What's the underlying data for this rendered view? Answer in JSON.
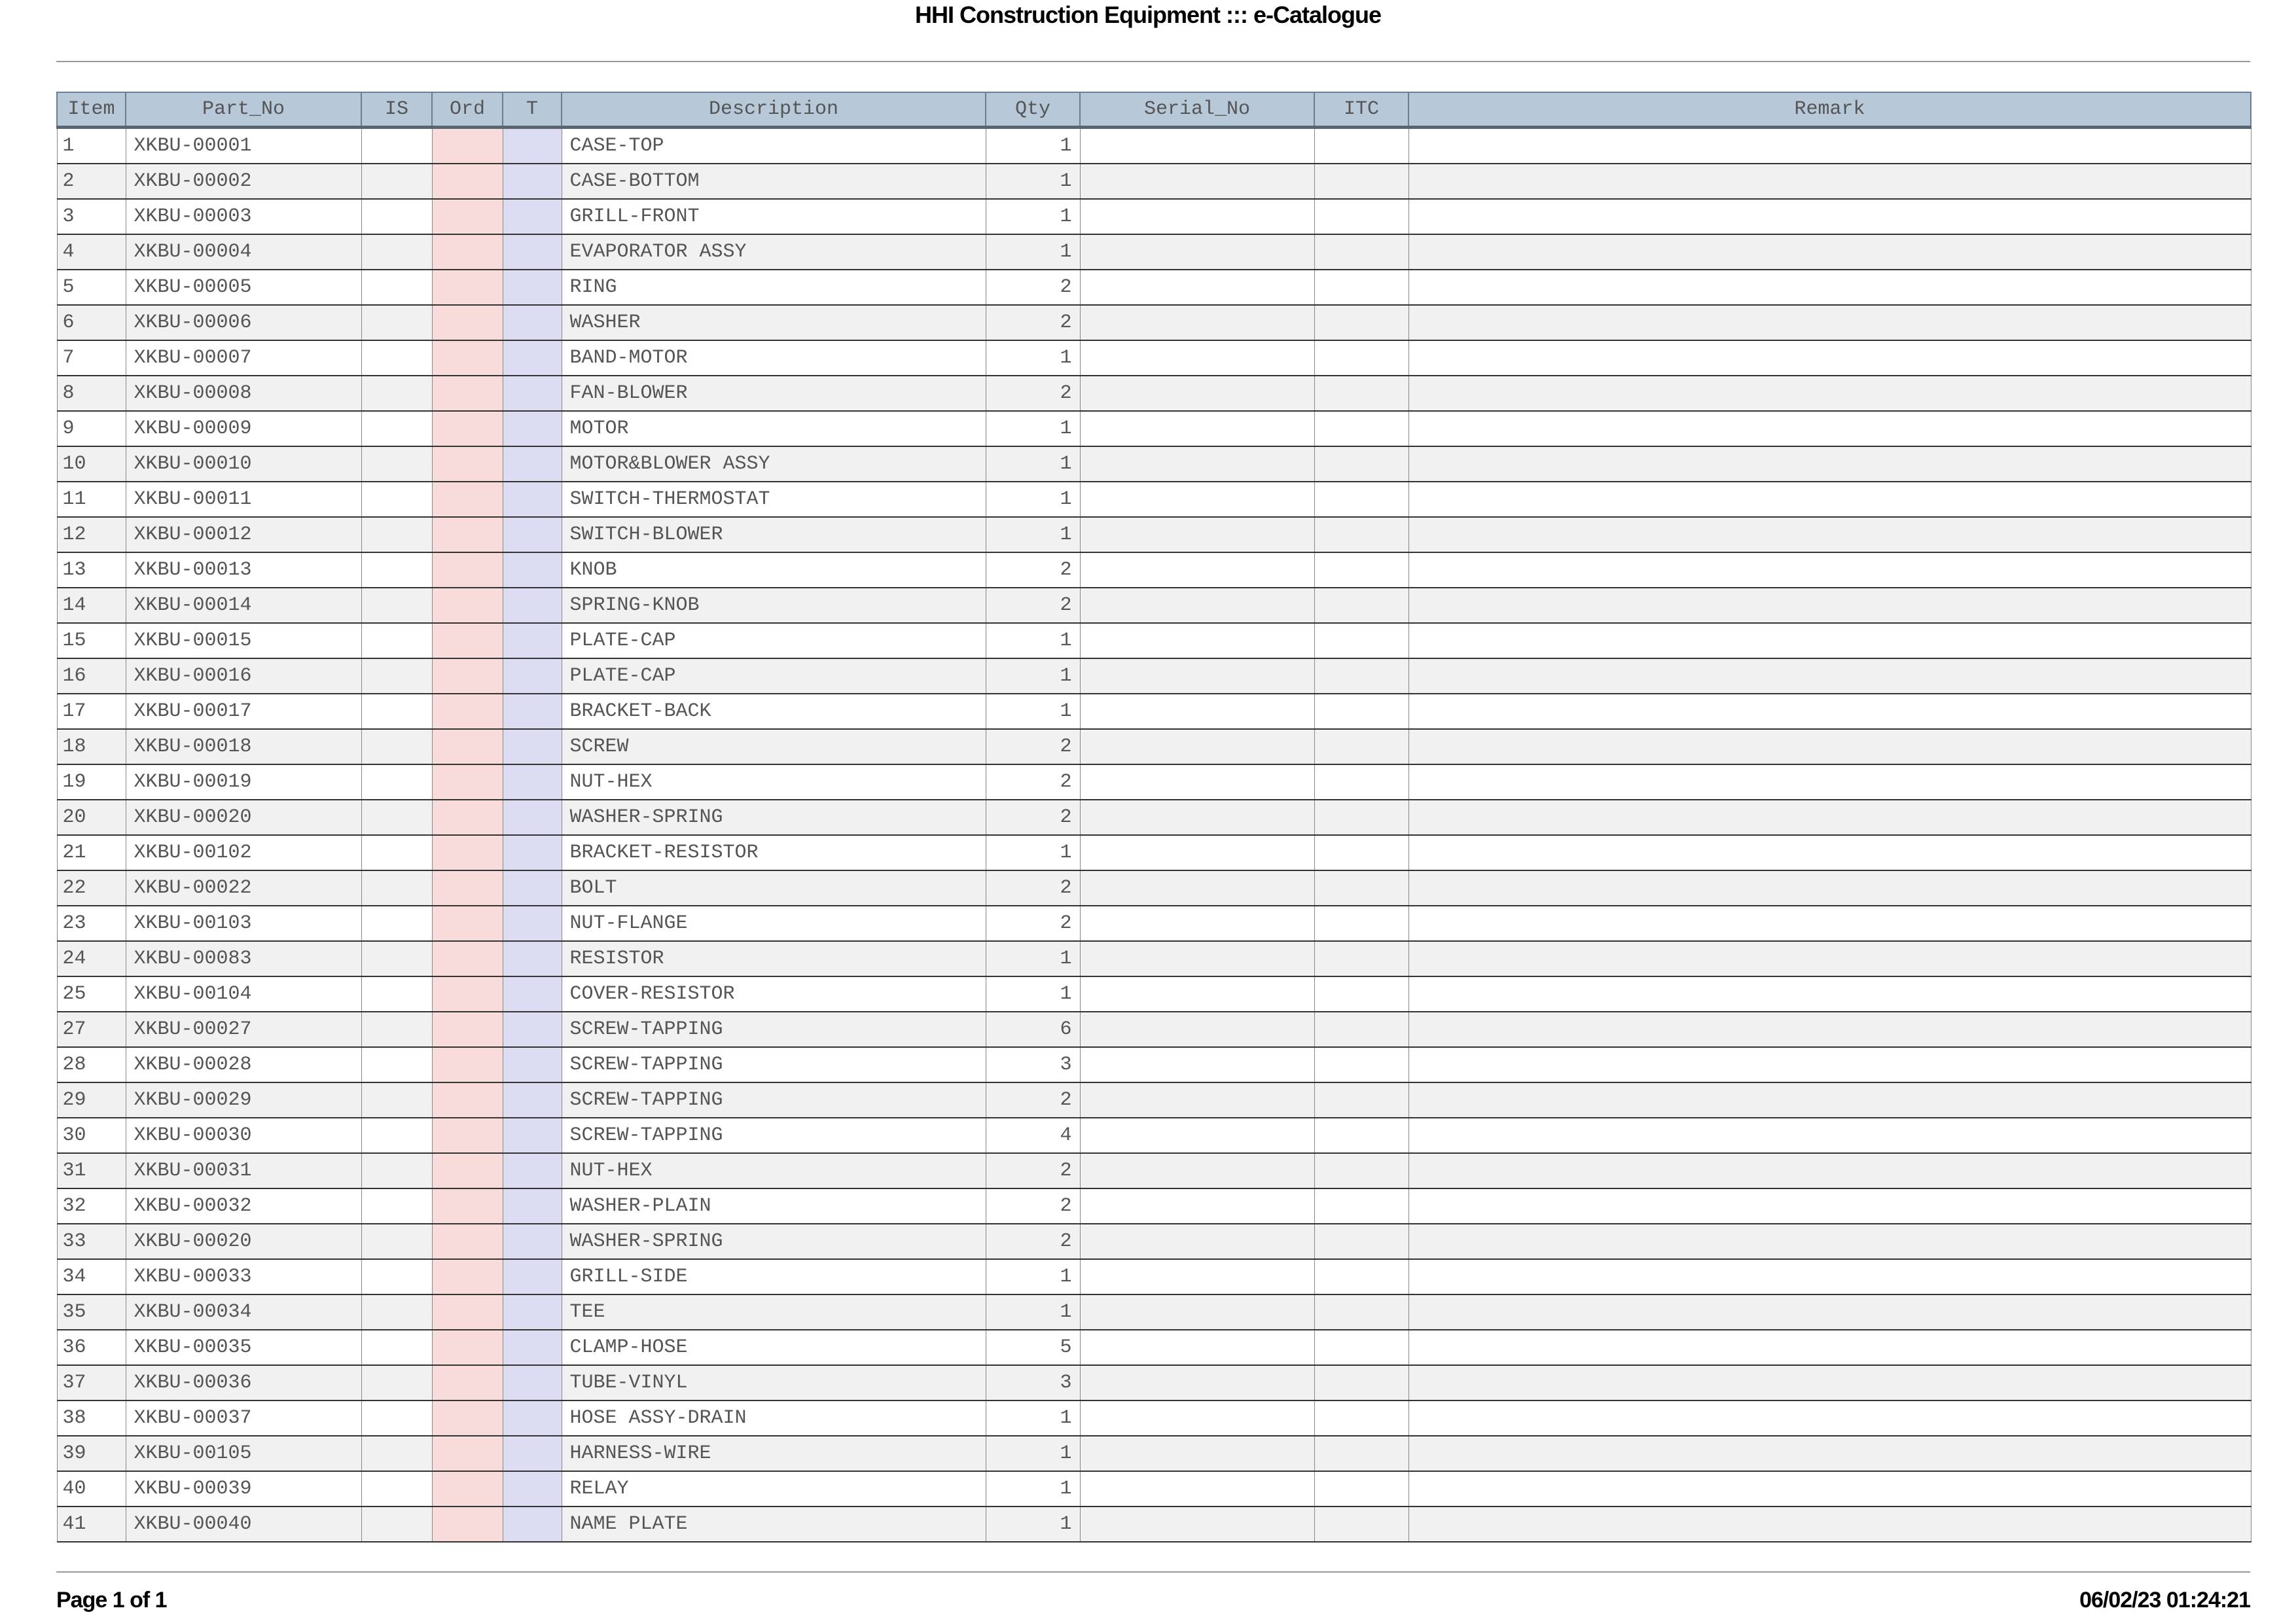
{
  "header": {
    "title": "HHI Construction Equipment ::: e-Catalogue"
  },
  "colors": {
    "header_bg": "#b7c9d9",
    "ord_column": "#f8dcdc",
    "t_column": "#dcdcf3",
    "alt_row": "#f1f1f1"
  },
  "table": {
    "columns": [
      "Item",
      "Part_No",
      "IS",
      "Ord",
      "T",
      "Description",
      "Qty",
      "Serial_No",
      "ITC",
      "Remark"
    ],
    "rows": [
      [
        "1",
        "XKBU-00001",
        "",
        "",
        "",
        "CASE-TOP",
        "1",
        "",
        "",
        ""
      ],
      [
        "2",
        "XKBU-00002",
        "",
        "",
        "",
        "CASE-BOTTOM",
        "1",
        "",
        "",
        ""
      ],
      [
        "3",
        "XKBU-00003",
        "",
        "",
        "",
        "GRILL-FRONT",
        "1",
        "",
        "",
        ""
      ],
      [
        "4",
        "XKBU-00004",
        "",
        "",
        "",
        "EVAPORATOR ASSY",
        "1",
        "",
        "",
        ""
      ],
      [
        "5",
        "XKBU-00005",
        "",
        "",
        "",
        "RING",
        "2",
        "",
        "",
        ""
      ],
      [
        "6",
        "XKBU-00006",
        "",
        "",
        "",
        "WASHER",
        "2",
        "",
        "",
        ""
      ],
      [
        "7",
        "XKBU-00007",
        "",
        "",
        "",
        "BAND-MOTOR",
        "1",
        "",
        "",
        ""
      ],
      [
        "8",
        "XKBU-00008",
        "",
        "",
        "",
        "FAN-BLOWER",
        "2",
        "",
        "",
        ""
      ],
      [
        "9",
        "XKBU-00009",
        "",
        "",
        "",
        "MOTOR",
        "1",
        "",
        "",
        ""
      ],
      [
        "10",
        "XKBU-00010",
        "",
        "",
        "",
        "MOTOR&BLOWER ASSY",
        "1",
        "",
        "",
        ""
      ],
      [
        "11",
        "XKBU-00011",
        "",
        "",
        "",
        "SWITCH-THERMOSTAT",
        "1",
        "",
        "",
        ""
      ],
      [
        "12",
        "XKBU-00012",
        "",
        "",
        "",
        "SWITCH-BLOWER",
        "1",
        "",
        "",
        ""
      ],
      [
        "13",
        "XKBU-00013",
        "",
        "",
        "",
        "KNOB",
        "2",
        "",
        "",
        ""
      ],
      [
        "14",
        "XKBU-00014",
        "",
        "",
        "",
        "SPRING-KNOB",
        "2",
        "",
        "",
        ""
      ],
      [
        "15",
        "XKBU-00015",
        "",
        "",
        "",
        "PLATE-CAP",
        "1",
        "",
        "",
        ""
      ],
      [
        "16",
        "XKBU-00016",
        "",
        "",
        "",
        "PLATE-CAP",
        "1",
        "",
        "",
        ""
      ],
      [
        "17",
        "XKBU-00017",
        "",
        "",
        "",
        "BRACKET-BACK",
        "1",
        "",
        "",
        ""
      ],
      [
        "18",
        "XKBU-00018",
        "",
        "",
        "",
        "SCREW",
        "2",
        "",
        "",
        ""
      ],
      [
        "19",
        "XKBU-00019",
        "",
        "",
        "",
        "NUT-HEX",
        "2",
        "",
        "",
        ""
      ],
      [
        "20",
        "XKBU-00020",
        "",
        "",
        "",
        "WASHER-SPRING",
        "2",
        "",
        "",
        ""
      ],
      [
        "21",
        "XKBU-00102",
        "",
        "",
        "",
        "BRACKET-RESISTOR",
        "1",
        "",
        "",
        ""
      ],
      [
        "22",
        "XKBU-00022",
        "",
        "",
        "",
        "BOLT",
        "2",
        "",
        "",
        ""
      ],
      [
        "23",
        "XKBU-00103",
        "",
        "",
        "",
        "NUT-FLANGE",
        "2",
        "",
        "",
        ""
      ],
      [
        "24",
        "XKBU-00083",
        "",
        "",
        "",
        "RESISTOR",
        "1",
        "",
        "",
        ""
      ],
      [
        "25",
        "XKBU-00104",
        "",
        "",
        "",
        "COVER-RESISTOR",
        "1",
        "",
        "",
        ""
      ],
      [
        "27",
        "XKBU-00027",
        "",
        "",
        "",
        "SCREW-TAPPING",
        "6",
        "",
        "",
        ""
      ],
      [
        "28",
        "XKBU-00028",
        "",
        "",
        "",
        "SCREW-TAPPING",
        "3",
        "",
        "",
        ""
      ],
      [
        "29",
        "XKBU-00029",
        "",
        "",
        "",
        "SCREW-TAPPING",
        "2",
        "",
        "",
        ""
      ],
      [
        "30",
        "XKBU-00030",
        "",
        "",
        "",
        "SCREW-TAPPING",
        "4",
        "",
        "",
        ""
      ],
      [
        "31",
        "XKBU-00031",
        "",
        "",
        "",
        "NUT-HEX",
        "2",
        "",
        "",
        ""
      ],
      [
        "32",
        "XKBU-00032",
        "",
        "",
        "",
        "WASHER-PLAIN",
        "2",
        "",
        "",
        ""
      ],
      [
        "33",
        "XKBU-00020",
        "",
        "",
        "",
        "WASHER-SPRING",
        "2",
        "",
        "",
        ""
      ],
      [
        "34",
        "XKBU-00033",
        "",
        "",
        "",
        "GRILL-SIDE",
        "1",
        "",
        "",
        ""
      ],
      [
        "35",
        "XKBU-00034",
        "",
        "",
        "",
        "TEE",
        "1",
        "",
        "",
        ""
      ],
      [
        "36",
        "XKBU-00035",
        "",
        "",
        "",
        "CLAMP-HOSE",
        "5",
        "",
        "",
        ""
      ],
      [
        "37",
        "XKBU-00036",
        "",
        "",
        "",
        "TUBE-VINYL",
        "3",
        "",
        "",
        ""
      ],
      [
        "38",
        "XKBU-00037",
        "",
        "",
        "",
        "HOSE ASSY-DRAIN",
        "1",
        "",
        "",
        ""
      ],
      [
        "39",
        "XKBU-00105",
        "",
        "",
        "",
        "HARNESS-WIRE",
        "1",
        "",
        "",
        ""
      ],
      [
        "40",
        "XKBU-00039",
        "",
        "",
        "",
        "RELAY",
        "1",
        "",
        "",
        ""
      ],
      [
        "41",
        "XKBU-00040",
        "",
        "",
        "",
        "NAME PLATE",
        "1",
        "",
        "",
        ""
      ]
    ]
  },
  "footer": {
    "page": "Page 1 of 1",
    "timestamp": "06/02/23 01:24:21"
  }
}
